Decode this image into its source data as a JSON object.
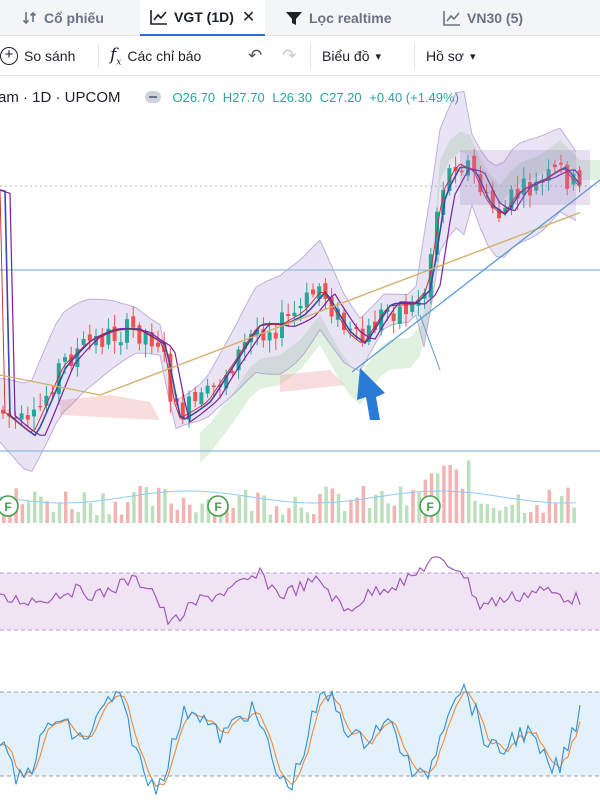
{
  "tabs": [
    {
      "label": "Cổ phiếu",
      "icon": "sort-icon",
      "active": false
    },
    {
      "label": "VGT (1D)",
      "icon": "chart-icon",
      "active": true,
      "closable": true
    },
    {
      "label": "Lọc realtime",
      "icon": "filter-icon",
      "active": false
    },
    {
      "label": "VN30 (5)",
      "icon": "chart-icon",
      "active": false
    }
  ],
  "toolbar": {
    "compare_label": "So sánh",
    "indicators_label": "Các chỉ báo",
    "chart_label": "Biểu đồ",
    "profile_label": "Hồ sơ"
  },
  "legend": {
    "symbol_text": "am · 1D · UPCOM",
    "open": "O26.70",
    "high": "H27.70",
    "low": "L26.30",
    "close": "C27.20",
    "change": "+0.40 (+1.49%)"
  },
  "chart_data": {
    "type": "candlestick",
    "interval": "1D",
    "exchange": "UPCOM",
    "last_bar": {
      "open": 26.7,
      "high": 27.7,
      "low": 26.3,
      "close": 27.2,
      "change": 0.4,
      "change_pct": 1.49
    },
    "price_range_visible": [
      19.5,
      29.5
    ],
    "horizontal_levels": [
      25.0,
      20.0
    ],
    "overlays": [
      "ichimoku-cloud",
      "bollinger-bands",
      "moving-averages",
      "trendlines"
    ],
    "event_markers": [
      {
        "label": "F",
        "x": 8
      },
      {
        "label": "F",
        "x": 218
      },
      {
        "label": "F",
        "x": 430
      }
    ],
    "sub_panes": [
      "volume",
      "rsi",
      "stochastic"
    ],
    "colors": {
      "up": "#26a69a",
      "down": "#ef5350",
      "band": "#9c82c9",
      "cloud_green": "#a5d6a7",
      "cloud_red": "#ef9a9a",
      "level": "#8cb8dd",
      "accent": "#2a6fdb"
    }
  }
}
